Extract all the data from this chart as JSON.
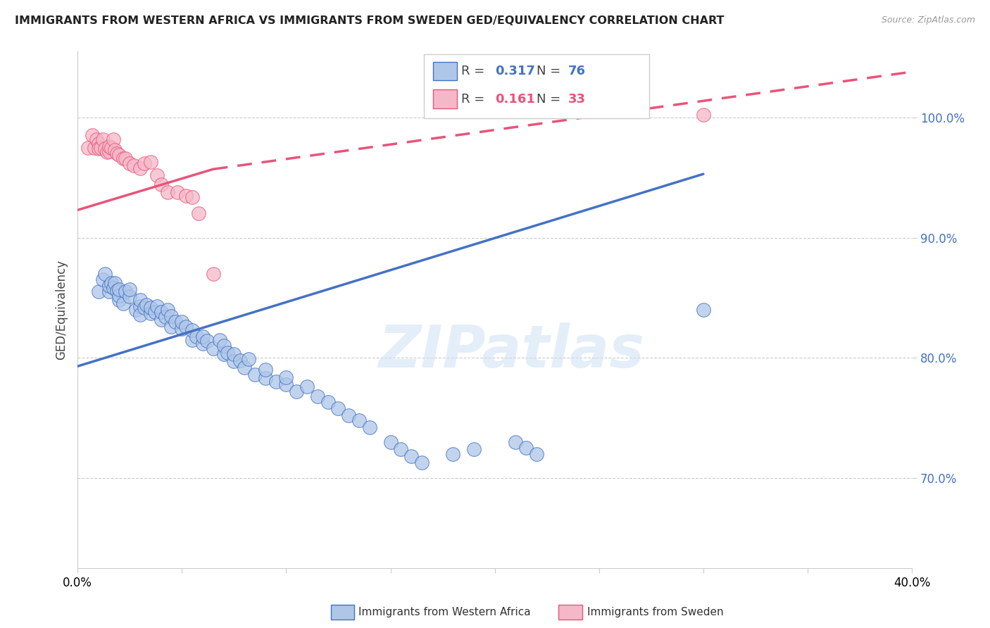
{
  "title": "IMMIGRANTS FROM WESTERN AFRICA VS IMMIGRANTS FROM SWEDEN GED/EQUIVALENCY CORRELATION CHART",
  "source": "Source: ZipAtlas.com",
  "ylabel": "GED/Equivalency",
  "ytick_labels": [
    "70.0%",
    "80.0%",
    "90.0%",
    "100.0%"
  ],
  "ytick_values": [
    0.7,
    0.8,
    0.9,
    1.0
  ],
  "xlim": [
    0.0,
    0.4
  ],
  "ylim": [
    0.625,
    1.055
  ],
  "legend_blue_R": "0.317",
  "legend_blue_N": "76",
  "legend_pink_R": "0.161",
  "legend_pink_N": "33",
  "blue_fill": "#aec6e8",
  "pink_fill": "#f5b8c8",
  "blue_edge": "#4472c4",
  "pink_edge": "#e8547a",
  "blue_line_color": "#4472c4",
  "pink_line_color": "#e8547a",
  "watermark": "ZIPatlas",
  "blue_line_x0": 0.0,
  "blue_line_y0": 0.793,
  "blue_line_x1": 0.3,
  "blue_line_y1": 0.953,
  "pink_line_solid_x0": 0.0,
  "pink_line_solid_y0": 0.923,
  "pink_line_solid_x1": 0.065,
  "pink_line_solid_y1": 0.957,
  "pink_line_dash_x0": 0.065,
  "pink_line_dash_y0": 0.957,
  "pink_line_dash_x1": 0.4,
  "pink_line_dash_y1": 1.038,
  "blue_scatter_x": [
    0.01,
    0.012,
    0.013,
    0.015,
    0.015,
    0.016,
    0.017,
    0.018,
    0.019,
    0.02,
    0.02,
    0.02,
    0.022,
    0.023,
    0.025,
    0.025,
    0.028,
    0.03,
    0.03,
    0.03,
    0.032,
    0.033,
    0.035,
    0.035,
    0.037,
    0.038,
    0.04,
    0.04,
    0.042,
    0.043,
    0.045,
    0.045,
    0.047,
    0.05,
    0.05,
    0.052,
    0.055,
    0.055,
    0.057,
    0.06,
    0.06,
    0.062,
    0.065,
    0.068,
    0.07,
    0.07,
    0.072,
    0.075,
    0.075,
    0.078,
    0.08,
    0.082,
    0.085,
    0.09,
    0.09,
    0.095,
    0.1,
    0.1,
    0.105,
    0.11,
    0.115,
    0.12,
    0.125,
    0.13,
    0.135,
    0.14,
    0.15,
    0.155,
    0.16,
    0.165,
    0.18,
    0.19,
    0.21,
    0.215,
    0.22,
    0.3
  ],
  "blue_scatter_y": [
    0.855,
    0.865,
    0.87,
    0.855,
    0.86,
    0.862,
    0.858,
    0.862,
    0.856,
    0.848,
    0.852,
    0.857,
    0.845,
    0.855,
    0.851,
    0.857,
    0.84,
    0.843,
    0.848,
    0.836,
    0.842,
    0.844,
    0.837,
    0.842,
    0.838,
    0.843,
    0.832,
    0.838,
    0.834,
    0.84,
    0.826,
    0.835,
    0.83,
    0.824,
    0.83,
    0.826,
    0.815,
    0.823,
    0.818,
    0.812,
    0.818,
    0.814,
    0.808,
    0.815,
    0.803,
    0.81,
    0.804,
    0.797,
    0.803,
    0.798,
    0.792,
    0.799,
    0.786,
    0.783,
    0.79,
    0.78,
    0.778,
    0.784,
    0.772,
    0.776,
    0.768,
    0.763,
    0.758,
    0.752,
    0.748,
    0.742,
    0.73,
    0.724,
    0.718,
    0.713,
    0.72,
    0.724,
    0.73,
    0.725,
    0.72,
    0.84
  ],
  "pink_scatter_x": [
    0.005,
    0.007,
    0.008,
    0.009,
    0.01,
    0.01,
    0.011,
    0.012,
    0.013,
    0.014,
    0.015,
    0.015,
    0.016,
    0.017,
    0.018,
    0.019,
    0.02,
    0.022,
    0.023,
    0.025,
    0.027,
    0.03,
    0.032,
    0.035,
    0.038,
    0.04,
    0.043,
    0.048,
    0.052,
    0.055,
    0.058,
    0.065,
    0.3
  ],
  "pink_scatter_y": [
    0.975,
    0.985,
    0.975,
    0.982,
    0.978,
    0.974,
    0.975,
    0.982,
    0.974,
    0.971,
    0.972,
    0.976,
    0.975,
    0.982,
    0.973,
    0.97,
    0.969,
    0.966,
    0.966,
    0.962,
    0.96,
    0.958,
    0.962,
    0.963,
    0.952,
    0.944,
    0.938,
    0.938,
    0.935,
    0.934,
    0.92,
    0.87,
    1.002
  ]
}
